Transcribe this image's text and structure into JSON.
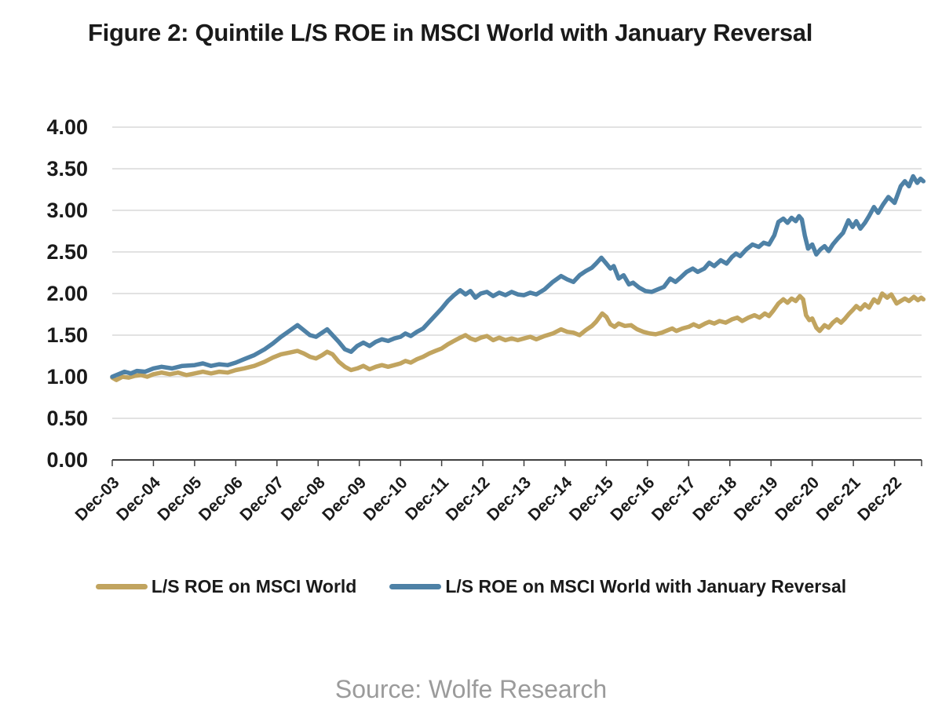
{
  "title": "Figure 2: Quintile L/S ROE in MSCI World with January Reversal",
  "source": "Source: Wolfe Research",
  "colors": {
    "grid": "#D9D9D9",
    "axis": "#3F3F3F",
    "label": "#1A1A1A",
    "source_text": "#9B9B9B",
    "gold_series": "#C1A45F",
    "blue_series": "#4E81A6"
  },
  "legend": {
    "items": [
      {
        "label": "L/S ROE on MSCI World",
        "color": "#C1A45F"
      },
      {
        "label": "L/S ROE on MSCI World with January Reversal",
        "color": "#4E81A6"
      }
    ]
  },
  "chart_data": {
    "type": "line",
    "title": "Figure 2: Quintile L/S ROE in MSCI World with January Reversal",
    "xlabel": "",
    "ylabel": "",
    "ylim": [
      0,
      4
    ],
    "grid": "horizontal",
    "legend_position": "bottom",
    "x_axis": {
      "unit": "years since Dec-03",
      "tick_labels": [
        "Dec-03",
        "Dec-04",
        "Dec-05",
        "Dec-06",
        "Dec-07",
        "Dec-08",
        "Dec-09",
        "Dec-10",
        "Dec-11",
        "Dec-12",
        "Dec-13",
        "Dec-14",
        "Dec-15",
        "Dec-16",
        "Dec-17",
        "Dec-18",
        "Dec-19",
        "Dec-20",
        "Dec-21",
        "Dec-22"
      ]
    },
    "y_axis": {
      "ticks": [
        {
          "value": 0.0,
          "label": "0.00"
        },
        {
          "value": 0.5,
          "label": "0.50"
        },
        {
          "value": 1.0,
          "label": "1.00"
        },
        {
          "value": 1.5,
          "label": "1.50"
        },
        {
          "value": 2.0,
          "label": "2.00"
        },
        {
          "value": 2.5,
          "label": "2.50"
        },
        {
          "value": 3.0,
          "label": "3.00"
        },
        {
          "value": 3.5,
          "label": "3.50"
        },
        {
          "value": 4.0,
          "label": "4.00"
        }
      ]
    },
    "series": [
      {
        "name": "L/S ROE on MSCI World",
        "color": "#C1A45F",
        "points": [
          [
            0,
            0.99
          ],
          [
            0.1,
            0.96
          ],
          [
            0.25,
            1.0
          ],
          [
            0.4,
            0.99
          ],
          [
            0.55,
            1.01
          ],
          [
            0.7,
            1.02
          ],
          [
            0.85,
            1.0
          ],
          [
            1.0,
            1.03
          ],
          [
            1.2,
            1.05
          ],
          [
            1.4,
            1.03
          ],
          [
            1.6,
            1.05
          ],
          [
            1.8,
            1.02
          ],
          [
            2.0,
            1.04
          ],
          [
            2.2,
            1.06
          ],
          [
            2.4,
            1.04
          ],
          [
            2.6,
            1.06
          ],
          [
            2.8,
            1.05
          ],
          [
            3.0,
            1.08
          ],
          [
            3.2,
            1.1
          ],
          [
            3.45,
            1.13
          ],
          [
            3.7,
            1.18
          ],
          [
            3.9,
            1.23
          ],
          [
            4.1,
            1.27
          ],
          [
            4.3,
            1.29
          ],
          [
            4.5,
            1.31
          ],
          [
            4.65,
            1.28
          ],
          [
            4.8,
            1.24
          ],
          [
            4.95,
            1.22
          ],
          [
            5.1,
            1.26
          ],
          [
            5.22,
            1.3
          ],
          [
            5.35,
            1.27
          ],
          [
            5.5,
            1.18
          ],
          [
            5.65,
            1.12
          ],
          [
            5.8,
            1.08
          ],
          [
            5.95,
            1.1
          ],
          [
            6.1,
            1.13
          ],
          [
            6.25,
            1.09
          ],
          [
            6.4,
            1.12
          ],
          [
            6.55,
            1.14
          ],
          [
            6.7,
            1.12
          ],
          [
            6.85,
            1.14
          ],
          [
            7.0,
            1.16
          ],
          [
            7.12,
            1.19
          ],
          [
            7.25,
            1.17
          ],
          [
            7.4,
            1.21
          ],
          [
            7.55,
            1.24
          ],
          [
            7.7,
            1.28
          ],
          [
            7.85,
            1.31
          ],
          [
            8.0,
            1.34
          ],
          [
            8.15,
            1.39
          ],
          [
            8.3,
            1.43
          ],
          [
            8.45,
            1.47
          ],
          [
            8.58,
            1.5
          ],
          [
            8.7,
            1.46
          ],
          [
            8.82,
            1.44
          ],
          [
            8.95,
            1.47
          ],
          [
            9.1,
            1.49
          ],
          [
            9.25,
            1.44
          ],
          [
            9.4,
            1.47
          ],
          [
            9.55,
            1.44
          ],
          [
            9.7,
            1.46
          ],
          [
            9.85,
            1.44
          ],
          [
            10.0,
            1.46
          ],
          [
            10.15,
            1.48
          ],
          [
            10.3,
            1.45
          ],
          [
            10.5,
            1.49
          ],
          [
            10.7,
            1.52
          ],
          [
            10.9,
            1.57
          ],
          [
            11.05,
            1.54
          ],
          [
            11.2,
            1.53
          ],
          [
            11.35,
            1.5
          ],
          [
            11.5,
            1.56
          ],
          [
            11.65,
            1.61
          ],
          [
            11.75,
            1.66
          ],
          [
            11.9,
            1.76
          ],
          [
            12.0,
            1.72
          ],
          [
            12.1,
            1.63
          ],
          [
            12.2,
            1.6
          ],
          [
            12.3,
            1.64
          ],
          [
            12.45,
            1.61
          ],
          [
            12.6,
            1.62
          ],
          [
            12.75,
            1.57
          ],
          [
            12.9,
            1.54
          ],
          [
            13.05,
            1.52
          ],
          [
            13.2,
            1.51
          ],
          [
            13.35,
            1.53
          ],
          [
            13.5,
            1.56
          ],
          [
            13.6,
            1.58
          ],
          [
            13.7,
            1.55
          ],
          [
            13.85,
            1.58
          ],
          [
            14.0,
            1.6
          ],
          [
            14.12,
            1.63
          ],
          [
            14.25,
            1.6
          ],
          [
            14.4,
            1.64
          ],
          [
            14.5,
            1.66
          ],
          [
            14.62,
            1.64
          ],
          [
            14.75,
            1.67
          ],
          [
            14.9,
            1.65
          ],
          [
            15.05,
            1.69
          ],
          [
            15.18,
            1.71
          ],
          [
            15.3,
            1.67
          ],
          [
            15.45,
            1.71
          ],
          [
            15.6,
            1.74
          ],
          [
            15.72,
            1.71
          ],
          [
            15.85,
            1.76
          ],
          [
            15.95,
            1.73
          ],
          [
            16.05,
            1.79
          ],
          [
            16.18,
            1.88
          ],
          [
            16.3,
            1.93
          ],
          [
            16.4,
            1.89
          ],
          [
            16.5,
            1.94
          ],
          [
            16.6,
            1.91
          ],
          [
            16.7,
            1.97
          ],
          [
            16.78,
            1.93
          ],
          [
            16.85,
            1.74
          ],
          [
            16.93,
            1.68
          ],
          [
            17.0,
            1.7
          ],
          [
            17.1,
            1.59
          ],
          [
            17.18,
            1.55
          ],
          [
            17.3,
            1.62
          ],
          [
            17.4,
            1.59
          ],
          [
            17.5,
            1.65
          ],
          [
            17.6,
            1.69
          ],
          [
            17.7,
            1.65
          ],
          [
            17.8,
            1.7
          ],
          [
            17.9,
            1.76
          ],
          [
            17.98,
            1.8
          ],
          [
            18.07,
            1.85
          ],
          [
            18.17,
            1.81
          ],
          [
            18.28,
            1.87
          ],
          [
            18.38,
            1.83
          ],
          [
            18.5,
            1.93
          ],
          [
            18.6,
            1.89
          ],
          [
            18.7,
            2.0
          ],
          [
            18.82,
            1.95
          ],
          [
            18.92,
            1.99
          ],
          [
            19.05,
            1.88
          ],
          [
            19.15,
            1.91
          ],
          [
            19.25,
            1.94
          ],
          [
            19.35,
            1.91
          ],
          [
            19.47,
            1.96
          ],
          [
            19.57,
            1.92
          ],
          [
            19.65,
            1.95
          ],
          [
            19.7,
            1.93
          ]
        ]
      },
      {
        "name": "L/S ROE on MSCI World with January Reversal",
        "color": "#4E81A6",
        "points": [
          [
            0,
            1.0
          ],
          [
            0.15,
            1.03
          ],
          [
            0.3,
            1.06
          ],
          [
            0.45,
            1.04
          ],
          [
            0.6,
            1.07
          ],
          [
            0.8,
            1.06
          ],
          [
            1.0,
            1.1
          ],
          [
            1.2,
            1.12
          ],
          [
            1.45,
            1.1
          ],
          [
            1.7,
            1.13
          ],
          [
            2.0,
            1.14
          ],
          [
            2.2,
            1.16
          ],
          [
            2.4,
            1.13
          ],
          [
            2.6,
            1.15
          ],
          [
            2.8,
            1.14
          ],
          [
            3.0,
            1.17
          ],
          [
            3.2,
            1.21
          ],
          [
            3.45,
            1.26
          ],
          [
            3.7,
            1.33
          ],
          [
            3.9,
            1.4
          ],
          [
            4.1,
            1.48
          ],
          [
            4.3,
            1.55
          ],
          [
            4.5,
            1.62
          ],
          [
            4.65,
            1.56
          ],
          [
            4.8,
            1.5
          ],
          [
            4.95,
            1.48
          ],
          [
            5.1,
            1.53
          ],
          [
            5.22,
            1.57
          ],
          [
            5.35,
            1.5
          ],
          [
            5.5,
            1.42
          ],
          [
            5.65,
            1.33
          ],
          [
            5.8,
            1.3
          ],
          [
            5.95,
            1.37
          ],
          [
            6.1,
            1.41
          ],
          [
            6.25,
            1.37
          ],
          [
            6.4,
            1.42
          ],
          [
            6.55,
            1.45
          ],
          [
            6.7,
            1.43
          ],
          [
            6.85,
            1.46
          ],
          [
            7.0,
            1.48
          ],
          [
            7.12,
            1.52
          ],
          [
            7.25,
            1.49
          ],
          [
            7.4,
            1.54
          ],
          [
            7.55,
            1.58
          ],
          [
            7.7,
            1.66
          ],
          [
            7.85,
            1.74
          ],
          [
            8.0,
            1.82
          ],
          [
            8.15,
            1.91
          ],
          [
            8.3,
            1.98
          ],
          [
            8.45,
            2.04
          ],
          [
            8.58,
            1.99
          ],
          [
            8.7,
            2.03
          ],
          [
            8.82,
            1.95
          ],
          [
            8.95,
            2.0
          ],
          [
            9.1,
            2.02
          ],
          [
            9.25,
            1.97
          ],
          [
            9.4,
            2.01
          ],
          [
            9.55,
            1.98
          ],
          [
            9.7,
            2.02
          ],
          [
            9.85,
            1.99
          ],
          [
            10.0,
            1.98
          ],
          [
            10.15,
            2.01
          ],
          [
            10.3,
            1.99
          ],
          [
            10.5,
            2.05
          ],
          [
            10.7,
            2.14
          ],
          [
            10.9,
            2.21
          ],
          [
            11.05,
            2.17
          ],
          [
            11.2,
            2.14
          ],
          [
            11.35,
            2.22
          ],
          [
            11.5,
            2.27
          ],
          [
            11.65,
            2.31
          ],
          [
            11.75,
            2.36
          ],
          [
            11.88,
            2.43
          ],
          [
            12.0,
            2.36
          ],
          [
            12.1,
            2.3
          ],
          [
            12.18,
            2.33
          ],
          [
            12.3,
            2.18
          ],
          [
            12.42,
            2.22
          ],
          [
            12.55,
            2.11
          ],
          [
            12.65,
            2.13
          ],
          [
            12.8,
            2.07
          ],
          [
            12.95,
            2.03
          ],
          [
            13.1,
            2.02
          ],
          [
            13.25,
            2.05
          ],
          [
            13.4,
            2.08
          ],
          [
            13.55,
            2.18
          ],
          [
            13.68,
            2.14
          ],
          [
            13.82,
            2.2
          ],
          [
            13.95,
            2.26
          ],
          [
            14.1,
            2.3
          ],
          [
            14.22,
            2.26
          ],
          [
            14.38,
            2.3
          ],
          [
            14.5,
            2.37
          ],
          [
            14.62,
            2.33
          ],
          [
            14.78,
            2.4
          ],
          [
            14.92,
            2.36
          ],
          [
            15.05,
            2.44
          ],
          [
            15.15,
            2.48
          ],
          [
            15.25,
            2.45
          ],
          [
            15.4,
            2.53
          ],
          [
            15.55,
            2.59
          ],
          [
            15.7,
            2.56
          ],
          [
            15.82,
            2.61
          ],
          [
            15.95,
            2.59
          ],
          [
            16.08,
            2.7
          ],
          [
            16.18,
            2.86
          ],
          [
            16.3,
            2.9
          ],
          [
            16.4,
            2.85
          ],
          [
            16.5,
            2.91
          ],
          [
            16.6,
            2.87
          ],
          [
            16.68,
            2.93
          ],
          [
            16.75,
            2.89
          ],
          [
            16.82,
            2.7
          ],
          [
            16.9,
            2.54
          ],
          [
            17.0,
            2.59
          ],
          [
            17.1,
            2.47
          ],
          [
            17.2,
            2.53
          ],
          [
            17.3,
            2.57
          ],
          [
            17.4,
            2.51
          ],
          [
            17.5,
            2.59
          ],
          [
            17.62,
            2.66
          ],
          [
            17.75,
            2.73
          ],
          [
            17.88,
            2.88
          ],
          [
            17.98,
            2.8
          ],
          [
            18.07,
            2.87
          ],
          [
            18.17,
            2.78
          ],
          [
            18.28,
            2.85
          ],
          [
            18.38,
            2.93
          ],
          [
            18.5,
            3.04
          ],
          [
            18.6,
            2.97
          ],
          [
            18.72,
            3.07
          ],
          [
            18.85,
            3.16
          ],
          [
            19.0,
            3.09
          ],
          [
            19.15,
            3.29
          ],
          [
            19.25,
            3.35
          ],
          [
            19.35,
            3.29
          ],
          [
            19.45,
            3.41
          ],
          [
            19.55,
            3.33
          ],
          [
            19.63,
            3.38
          ],
          [
            19.7,
            3.35
          ]
        ]
      }
    ]
  }
}
